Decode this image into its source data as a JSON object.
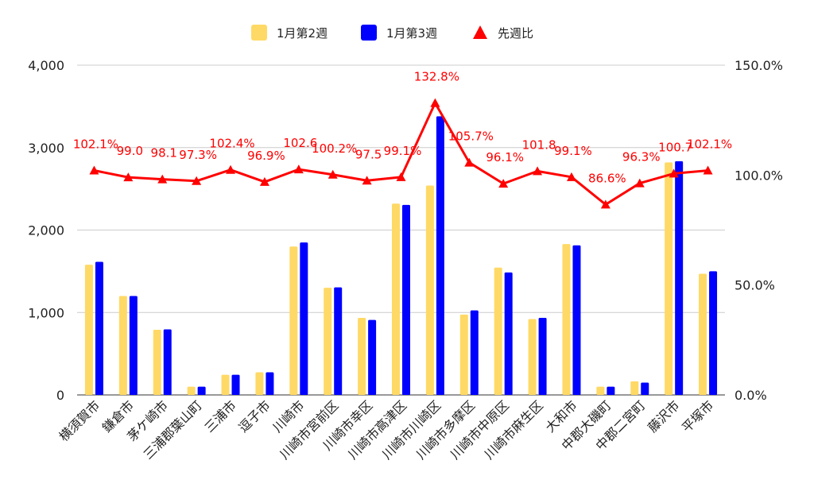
{
  "chart_data": {
    "type": "bar",
    "title": "",
    "xlabel": "",
    "ylabel": "",
    "categories": [
      "横須賀市",
      "鎌倉市",
      "茅ケ崎市",
      "三浦郡葉山町",
      "三浦市",
      "逗子市",
      "川崎市",
      "川崎市宮前区",
      "川崎市幸区",
      "川崎市高津区",
      "川崎市川崎区",
      "川崎市多摩区",
      "川崎市中原区",
      "川崎市麻生区",
      "大和市",
      "中郡大磯町",
      "中郡二宮町",
      "藤沢市",
      "平塚市"
    ],
    "series": [
      {
        "name": "1月第2週",
        "type": "bar",
        "axis": "left",
        "color": "#ffd966",
        "values": [
          1580,
          1200,
          790,
          100,
          245,
          275,
          1800,
          1300,
          935,
          2320,
          2540,
          975,
          1545,
          920,
          1830,
          100,
          165,
          2820,
          1470
        ]
      },
      {
        "name": "1月第3週",
        "type": "bar",
        "axis": "left",
        "color": "#0000ff",
        "values": [
          1615,
          1200,
          795,
          100,
          245,
          275,
          1850,
          1305,
          910,
          2305,
          3380,
          1025,
          1485,
          935,
          1815,
          100,
          150,
          2835,
          1500
        ]
      },
      {
        "name": "先週比",
        "type": "line",
        "axis": "right",
        "color": "#ff0000",
        "marker": "triangle",
        "values": [
          102.1,
          99.0,
          98.1,
          97.3,
          102.4,
          96.9,
          102.6,
          100.2,
          97.5,
          99.1,
          132.8,
          105.7,
          96.1,
          101.8,
          99.1,
          86.6,
          96.3,
          100.7,
          102.1
        ],
        "labels": [
          "102.1%",
          "99.0",
          "98.1",
          "97.3%",
          "102.4%",
          "96.9%",
          "102.6",
          "100.2%",
          "97.5",
          "99.1%",
          "132.8%",
          "105.7%",
          "96.1%",
          "101.8",
          "99.1%",
          "86.6%",
          "96.3%",
          "100.7",
          "102.1%"
        ]
      }
    ],
    "y_left": {
      "min": 0,
      "max": 4000,
      "ticks": [
        0,
        1000,
        2000,
        3000,
        4000
      ],
      "tick_labels": [
        "0",
        "1,000",
        "2,000",
        "3,000",
        "4,000"
      ]
    },
    "y_right": {
      "min": 0,
      "max": 150,
      "ticks": [
        0,
        50,
        100,
        150
      ],
      "tick_labels": [
        "0.0%",
        "50.0%",
        "100.0%",
        "150.0%"
      ]
    },
    "grid": true,
    "legend_position": "top-center"
  }
}
